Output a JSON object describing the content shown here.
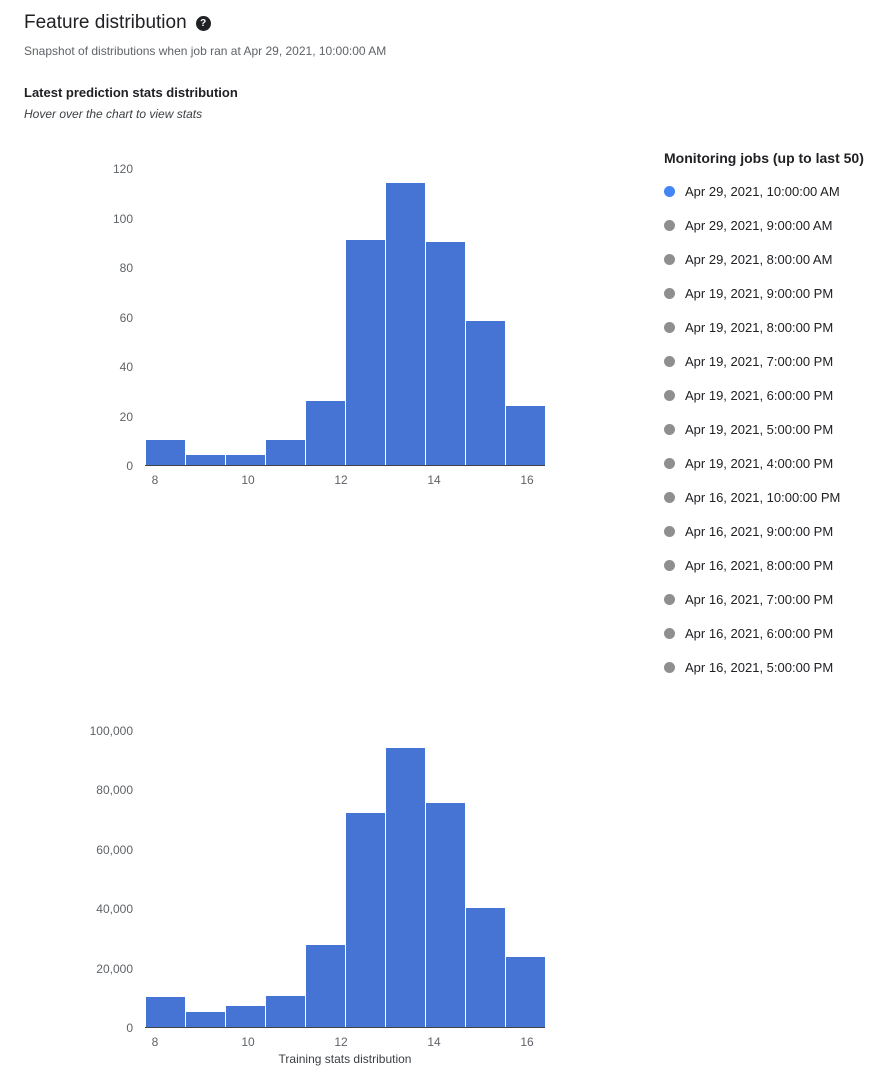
{
  "header": {
    "title": "Feature distribution",
    "help_icon": "?",
    "subtitle": "Snapshot of distributions when job ran at Apr 29, 2021, 10:00:00 AM"
  },
  "section": {
    "title": "Latest prediction stats distribution",
    "hint": "Hover over the chart to view stats"
  },
  "legend": {
    "title": "Monitoring jobs (up to last 50)",
    "items": [
      {
        "label": "Apr 29, 2021, 10:00:00 AM",
        "selected": true
      },
      {
        "label": "Apr 29, 2021, 9:00:00 AM",
        "selected": false
      },
      {
        "label": "Apr 29, 2021, 8:00:00 AM",
        "selected": false
      },
      {
        "label": "Apr 19, 2021, 9:00:00 PM",
        "selected": false
      },
      {
        "label": "Apr 19, 2021, 8:00:00 PM",
        "selected": false
      },
      {
        "label": "Apr 19, 2021, 7:00:00 PM",
        "selected": false
      },
      {
        "label": "Apr 19, 2021, 6:00:00 PM",
        "selected": false
      },
      {
        "label": "Apr 19, 2021, 5:00:00 PM",
        "selected": false
      },
      {
        "label": "Apr 19, 2021, 4:00:00 PM",
        "selected": false
      },
      {
        "label": "Apr 16, 2021, 10:00:00 PM",
        "selected": false
      },
      {
        "label": "Apr 16, 2021, 9:00:00 PM",
        "selected": false
      },
      {
        "label": "Apr 16, 2021, 8:00:00 PM",
        "selected": false
      },
      {
        "label": "Apr 16, 2021, 7:00:00 PM",
        "selected": false
      },
      {
        "label": "Apr 16, 2021, 6:00:00 PM",
        "selected": false
      },
      {
        "label": "Apr 16, 2021, 5:00:00 PM",
        "selected": false
      }
    ]
  },
  "colors": {
    "bar": "#4674d4",
    "selected_dot": "#4285f4",
    "unselected_dot": "#8f8f8f"
  },
  "chart_data": [
    {
      "type": "bar",
      "title": "Latest prediction stats distribution",
      "x": [
        8,
        9,
        10,
        11,
        12,
        13,
        14,
        15,
        16,
        17
      ],
      "values": [
        10,
        4,
        4,
        10,
        26,
        91,
        114,
        90,
        58,
        24
      ],
      "ylim": [
        0,
        120
      ],
      "y_ticks": [
        0,
        20,
        40,
        60,
        80,
        100,
        120
      ],
      "x_ticks": [
        {
          "label": "8",
          "pct": 2.5
        },
        {
          "label": "10",
          "pct": 25.75
        },
        {
          "label": "12",
          "pct": 49
        },
        {
          "label": "14",
          "pct": 72.25
        },
        {
          "label": "16",
          "pct": 95.5
        }
      ],
      "xlabel": "",
      "grid": false,
      "legend_position": "right"
    },
    {
      "type": "bar",
      "title": "Training stats distribution",
      "x": [
        8,
        9,
        10,
        11,
        12,
        13,
        14,
        15,
        16,
        17
      ],
      "values": [
        10000,
        5000,
        7000,
        10500,
        27500,
        72000,
        94000,
        75500,
        40000,
        23500
      ],
      "ylim": [
        0,
        100000
      ],
      "y_ticks": [
        0,
        20000,
        40000,
        60000,
        80000,
        100000
      ],
      "x_ticks": [
        {
          "label": "8",
          "pct": 2.5
        },
        {
          "label": "10",
          "pct": 25.75
        },
        {
          "label": "12",
          "pct": 49
        },
        {
          "label": "14",
          "pct": 72.25
        },
        {
          "label": "16",
          "pct": 95.5
        }
      ],
      "xlabel": "Training stats distribution",
      "grid": false,
      "legend_position": "none"
    }
  ]
}
